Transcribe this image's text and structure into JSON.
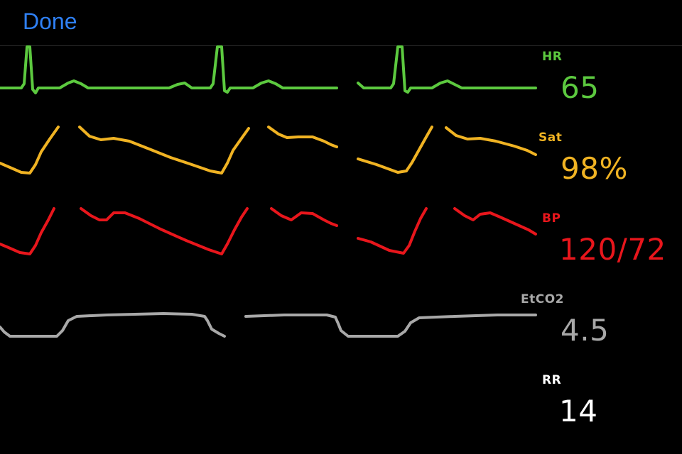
{
  "toolbar": {
    "done_label": "Done",
    "accent": "#2f80f4"
  },
  "monitor": {
    "channels": [
      {
        "label": "HR",
        "value": "65",
        "color": "#5cc93f"
      },
      {
        "label": "Sat",
        "value": "98%",
        "color": "#f0b323"
      },
      {
        "label": "BP",
        "value": "120/72",
        "color": "#e8161c"
      },
      {
        "label": "EtCO2",
        "value": "4.5",
        "color": "#a8a8a8"
      },
      {
        "label": "RR",
        "value": "14",
        "color": "#ffffff"
      }
    ]
  }
}
